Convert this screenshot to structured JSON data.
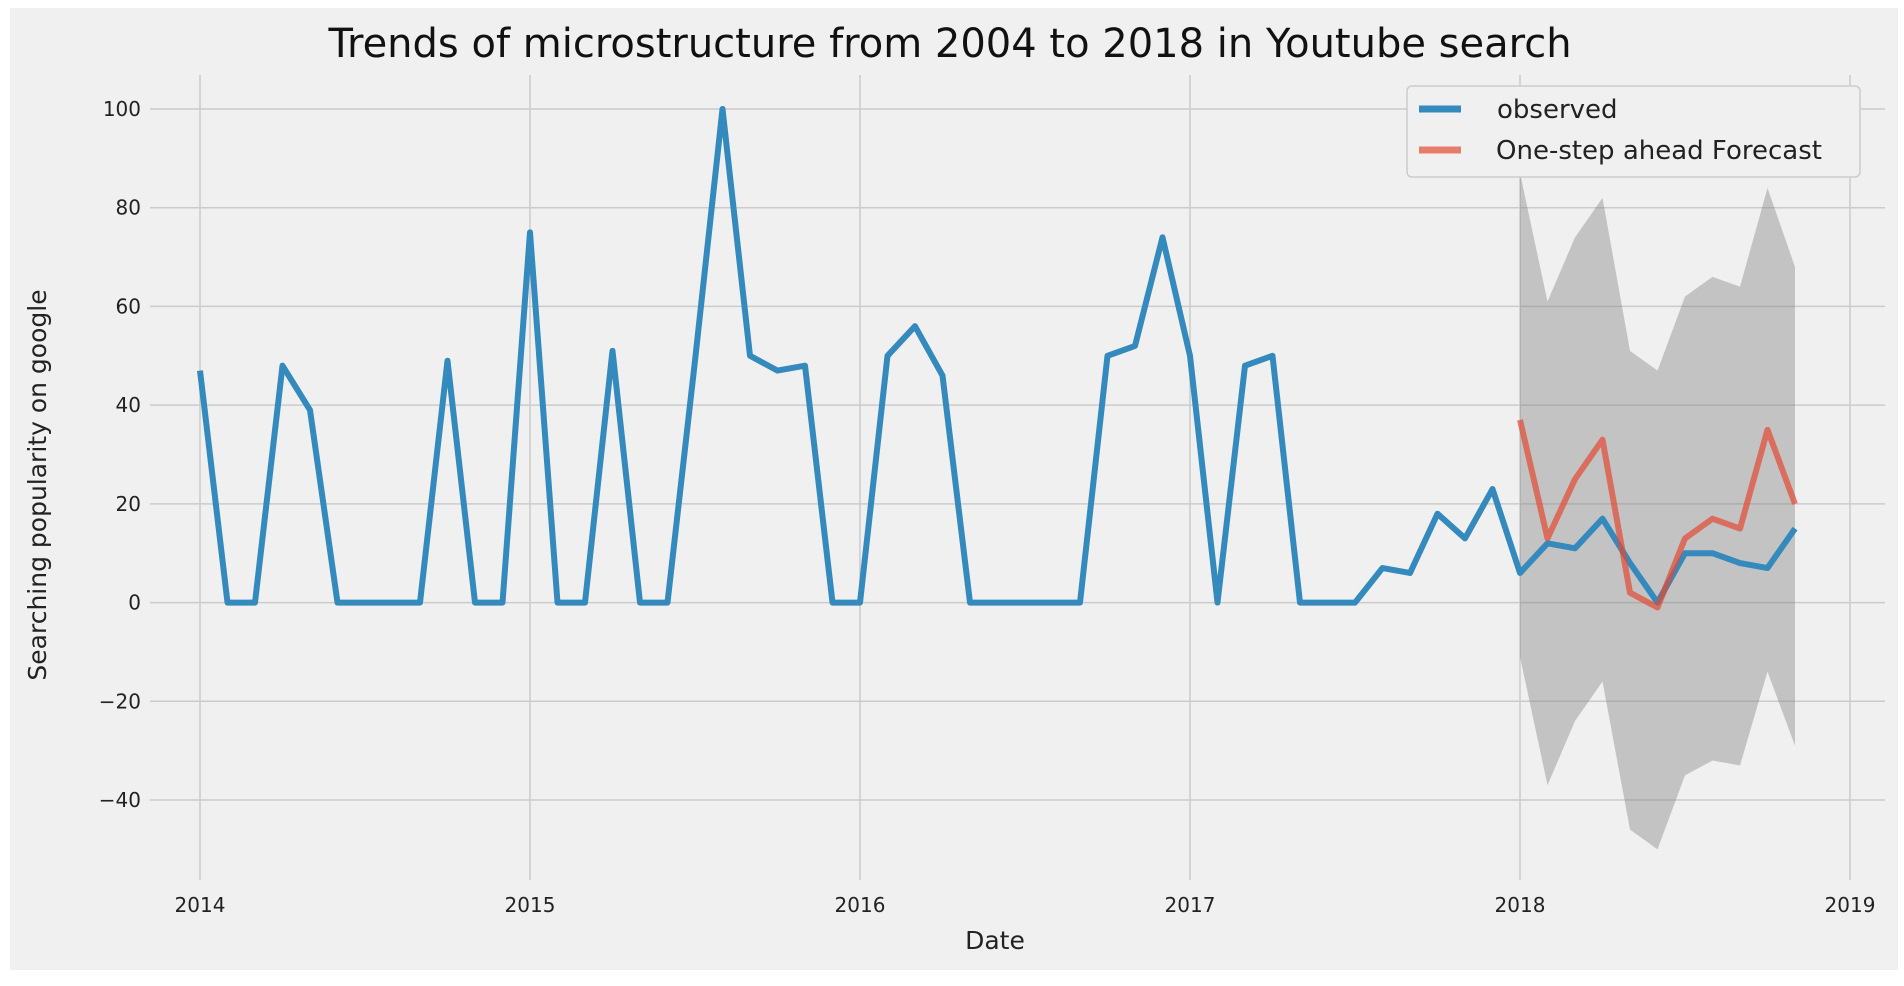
{
  "chart_data": {
    "type": "line",
    "title": "Trends of microstructure from 2004 to 2018 in Youtube search",
    "xlabel": "Date",
    "ylabel": "Searching popularity on google",
    "x_ticks": [
      "2014",
      "2015",
      "2016",
      "2017",
      "2018",
      "2019"
    ],
    "y_ticks": [
      "−40",
      "−20",
      "0",
      "20",
      "40",
      "60",
      "80",
      "100"
    ],
    "xlim": [
      "2013-10",
      "2019-02"
    ],
    "ylim": [
      -54,
      108
    ],
    "grid": true,
    "legend_position": "top-right",
    "series": [
      {
        "name": "observed",
        "color": "#348ABD",
        "points": [
          [
            "2014-01",
            47
          ],
          [
            "2014-02",
            0
          ],
          [
            "2014-03",
            0
          ],
          [
            "2014-04",
            48
          ],
          [
            "2014-05",
            39
          ],
          [
            "2014-06",
            0
          ],
          [
            "2014-07",
            0
          ],
          [
            "2014-08",
            0
          ],
          [
            "2014-09",
            0
          ],
          [
            "2014-10",
            49
          ],
          [
            "2014-11",
            0
          ],
          [
            "2014-12",
            0
          ],
          [
            "2015-01",
            75
          ],
          [
            "2015-02",
            0
          ],
          [
            "2015-03",
            0
          ],
          [
            "2015-04",
            51
          ],
          [
            "2015-05",
            0
          ],
          [
            "2015-06",
            0
          ],
          [
            "2015-07",
            49
          ],
          [
            "2015-08",
            100
          ],
          [
            "2015-09",
            50
          ],
          [
            "2015-10",
            47
          ],
          [
            "2015-11",
            48
          ],
          [
            "2015-12",
            0
          ],
          [
            "2016-01",
            0
          ],
          [
            "2016-02",
            50
          ],
          [
            "2016-03",
            56
          ],
          [
            "2016-04",
            46
          ],
          [
            "2016-05",
            0
          ],
          [
            "2016-06",
            0
          ],
          [
            "2016-07",
            0
          ],
          [
            "2016-08",
            0
          ],
          [
            "2016-09",
            0
          ],
          [
            "2016-10",
            50
          ],
          [
            "2016-11",
            52
          ],
          [
            "2016-12",
            74
          ],
          [
            "2017-01",
            50
          ],
          [
            "2017-02",
            0
          ],
          [
            "2017-03",
            48
          ],
          [
            "2017-04",
            50
          ],
          [
            "2017-05",
            0
          ],
          [
            "2017-06",
            0
          ],
          [
            "2017-07",
            0
          ],
          [
            "2017-08",
            7
          ],
          [
            "2017-09",
            6
          ],
          [
            "2017-10",
            18
          ],
          [
            "2017-11",
            13
          ],
          [
            "2017-12",
            23
          ],
          [
            "2018-01",
            6
          ],
          [
            "2018-02",
            12
          ],
          [
            "2018-03",
            11
          ],
          [
            "2018-04",
            17
          ],
          [
            "2018-05",
            8
          ],
          [
            "2018-06",
            0
          ],
          [
            "2018-07",
            10
          ],
          [
            "2018-08",
            10
          ],
          [
            "2018-09",
            8
          ],
          [
            "2018-10",
            7
          ],
          [
            "2018-11",
            15
          ]
        ]
      },
      {
        "name": "One-step ahead Forecast",
        "color": "#E24A33",
        "points": [
          [
            "2018-01",
            37
          ],
          [
            "2018-02",
            13
          ],
          [
            "2018-03",
            25
          ],
          [
            "2018-04",
            33
          ],
          [
            "2018-05",
            2
          ],
          [
            "2018-06",
            -1
          ],
          [
            "2018-07",
            13
          ],
          [
            "2018-08",
            17
          ],
          [
            "2018-09",
            15
          ],
          [
            "2018-10",
            35
          ],
          [
            "2018-11",
            20
          ]
        ]
      }
    ],
    "confidence_band": {
      "color": "#808080",
      "points": [
        [
          "2018-01",
          -11,
          87
        ],
        [
          "2018-02",
          -37,
          61
        ],
        [
          "2018-03",
          -24,
          74
        ],
        [
          "2018-04",
          -16,
          82
        ],
        [
          "2018-05",
          -46,
          51
        ],
        [
          "2018-06",
          -50,
          47
        ],
        [
          "2018-07",
          -35,
          62
        ],
        [
          "2018-08",
          -32,
          66
        ],
        [
          "2018-09",
          -33,
          64
        ],
        [
          "2018-10",
          -14,
          84
        ],
        [
          "2018-11",
          -29,
          68
        ]
      ]
    }
  }
}
